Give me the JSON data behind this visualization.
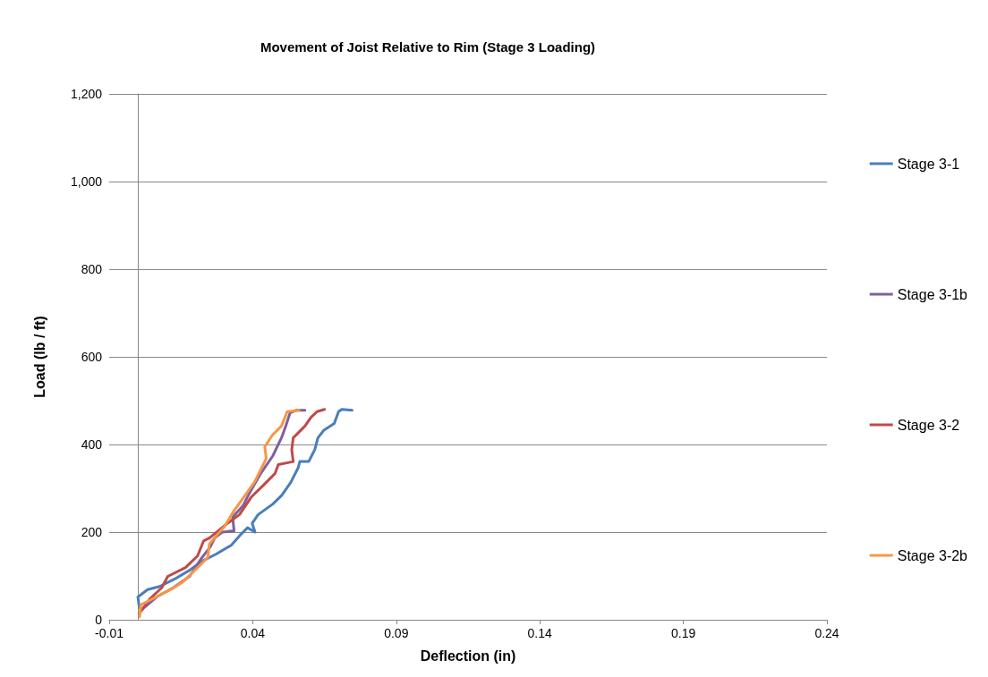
{
  "chart_data": {
    "type": "line",
    "title": "Movement of Joist Relative to Rim (Stage 3 Loading)",
    "xlabel": "Deflection (in)",
    "ylabel": "Load (lb / ft)",
    "xlim": [
      -0.01,
      0.24
    ],
    "xticks": [
      -0.01,
      0.04,
      0.09,
      0.14,
      0.19,
      0.24
    ],
    "ylim": [
      0,
      1200
    ],
    "yticks": [
      0,
      200,
      400,
      600,
      800,
      {
        "value": 1000,
        "label": "1,000"
      },
      {
        "value": 1200,
        "label": "1,200"
      }
    ],
    "grid": "y",
    "legend": "right",
    "marker": "none",
    "line_style": "solid",
    "series": [
      {
        "name": "Stage 3-1",
        "color": "#4a7ebb",
        "x": [
          0.0005,
          0.0,
          0.0034,
          0.0076,
          0.0128,
          0.018,
          0.0221,
          0.0273,
          0.0325,
          0.0356,
          0.0382,
          0.0408,
          0.0398,
          0.0419,
          0.047,
          0.0501,
          0.0533,
          0.0559,
          0.0564,
          0.0595,
          0.0616,
          0.0627,
          0.0647,
          0.0684,
          0.0699,
          0.071,
          0.0746
        ],
        "values": [
          28,
          52,
          69,
          76,
          93,
          113,
          133,
          150,
          170,
          193,
          210,
          200,
          220,
          240,
          264,
          284,
          314,
          348,
          361,
          361,
          388,
          415,
          432,
          448,
          475,
          480,
          478
        ]
      },
      {
        "name": "Stage 3-1b",
        "color": "#7d60a0",
        "x": [
          0.001,
          0.0065,
          0.0123,
          0.018,
          0.0221,
          0.0252,
          0.0268,
          0.0294,
          0.0335,
          0.033,
          0.0366,
          0.0387,
          0.0428,
          0.047,
          0.05,
          0.0515,
          0.053,
          0.0551,
          0.0582
        ],
        "values": [
          21,
          52,
          73,
          99,
          140,
          166,
          187,
          200,
          203,
          234,
          260,
          287,
          334,
          374,
          415,
          442,
          472,
          478,
          478
        ]
      },
      {
        "name": "Stage 3-2",
        "color": "#be4b48",
        "x": [
          0.0006,
          0.0042,
          0.0083,
          0.0104,
          0.0166,
          0.0208,
          0.0229,
          0.025,
          0.0312,
          0.0354,
          0.0395,
          0.0437,
          0.0478,
          0.0489,
          0.0541,
          0.0536,
          0.0541,
          0.0582,
          0.0603,
          0.0624,
          0.065
        ],
        "values": [
          15,
          48,
          73,
          99,
          119,
          146,
          180,
          187,
          220,
          240,
          280,
          307,
          334,
          354,
          361,
          388,
          415,
          442,
          462,
          475,
          480
        ]
      },
      {
        "name": "Stage 3-2b",
        "color": "#f79646",
        "x": [
          0.0006,
          0.001,
          0.0052,
          0.0114,
          0.0156,
          0.0208,
          0.0244,
          0.0249,
          0.0271,
          0.0302,
          0.0333,
          0.0369,
          0.0406,
          0.0432,
          0.0447,
          0.0442,
          0.0468,
          0.05,
          0.052,
          0.0561
        ],
        "values": [
          7,
          34,
          48,
          69,
          86,
          119,
          143,
          173,
          190,
          213,
          247,
          280,
          314,
          348,
          368,
          395,
          421,
          442,
          475,
          478
        ]
      }
    ]
  }
}
